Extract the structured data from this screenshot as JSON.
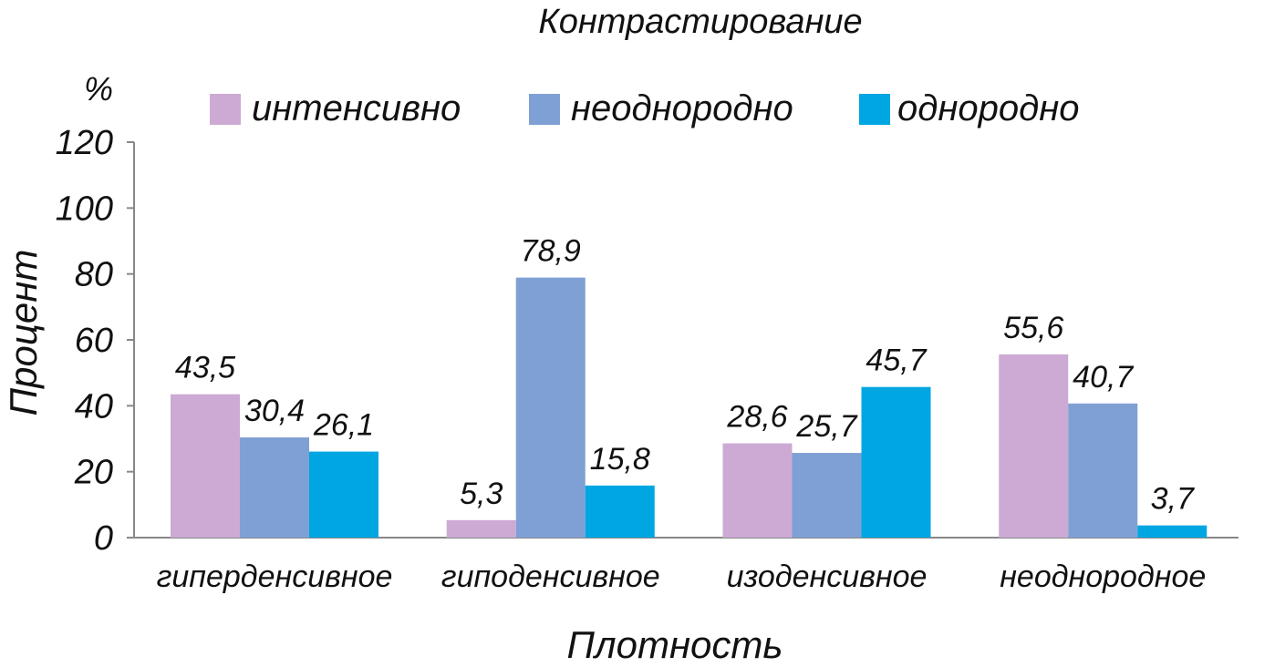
{
  "chart_data": {
    "type": "bar",
    "title": "Контрастирование",
    "ylabel": "Процент",
    "yunit": "%",
    "xlabel": "Плотность",
    "categories": [
      "гиперденсивное",
      "гиподенсивное",
      "изоденсивное",
      "неоднородное"
    ],
    "series": [
      {
        "name": "интенсивно",
        "color": "#ccaad4",
        "values": [
          43.5,
          5.3,
          28.6,
          55.6
        ],
        "labels": [
          "43,5",
          "5,3",
          "28,6",
          "55,6"
        ]
      },
      {
        "name": "неоднородно",
        "color": "#7fa0d4",
        "values": [
          30.4,
          78.9,
          25.7,
          40.7
        ],
        "labels": [
          "30,4",
          "78,9",
          "25,7",
          "40,7"
        ]
      },
      {
        "name": "однородно",
        "color": "#00a6e2",
        "values": [
          26.1,
          15.8,
          45.7,
          3.7
        ],
        "labels": [
          "26,1",
          "15,8",
          "45,7",
          "3,7"
        ]
      }
    ],
    "ylim": [
      0,
      120
    ],
    "yticks": [
      "0",
      "20",
      "40",
      "60",
      "80",
      "100",
      "120"
    ],
    "grid": false,
    "legend_position": "top"
  }
}
